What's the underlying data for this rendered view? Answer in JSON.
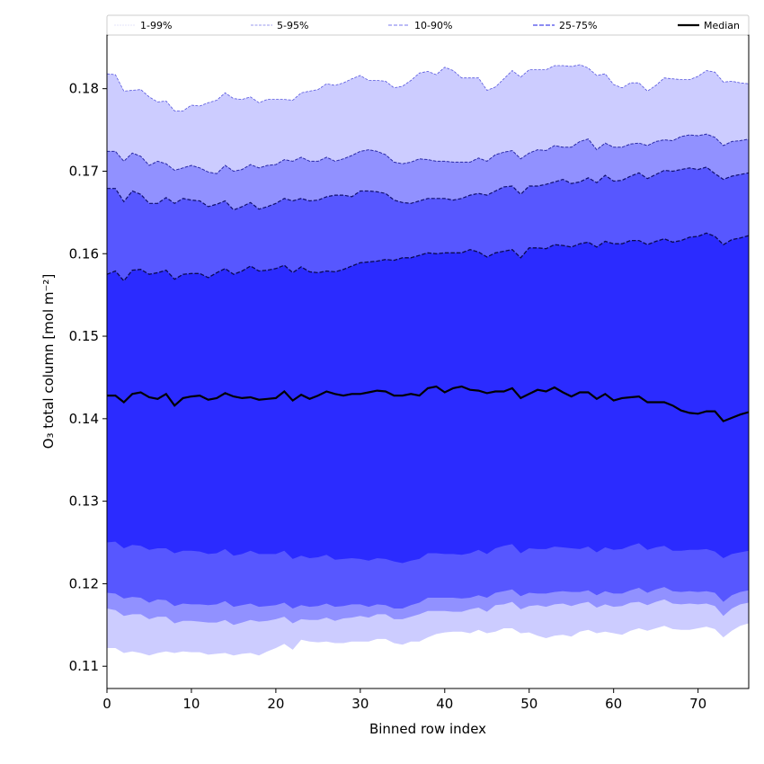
{
  "chart_data": {
    "type": "area",
    "title": "",
    "xlabel": "Binned row index",
    "ylabel": "O₃ total column [mol m⁻²]",
    "xlim": [
      0,
      76
    ],
    "ylim": [
      0.1073,
      0.1865
    ],
    "grid": false,
    "legend_placement": "top",
    "x_ticks": [
      0,
      10,
      20,
      30,
      40,
      50,
      60,
      70
    ],
    "x_tick_labels": [
      "0",
      "10",
      "20",
      "30",
      "40",
      "50",
      "60",
      "70"
    ],
    "y_ticks": [
      0.11,
      0.12,
      0.13,
      0.14,
      0.15,
      0.16,
      0.17,
      0.18
    ],
    "y_tick_labels": [
      "0.11",
      "0.12",
      "0.13",
      "0.14",
      "0.15",
      "0.16",
      "0.17",
      "0.18"
    ],
    "legend": [
      {
        "label": "1-99%",
        "color": "#ccccff",
        "style": "dashed-thin"
      },
      {
        "label": "5-95%",
        "color": "#9999ff",
        "style": "dashed"
      },
      {
        "label": "10-90%",
        "color": "#6666ff",
        "style": "dashed"
      },
      {
        "label": "25-75%",
        "color": "#3333ff",
        "style": "dashed-thick"
      },
      {
        "label": "Median",
        "color": "#000000",
        "style": "solid"
      }
    ],
    "band_colors": {
      "p1_99": "#ccccff",
      "p5_95": "#9191ff",
      "p10_90": "#5757ff",
      "p25_75": "#2b2bff",
      "median": "#000000"
    },
    "x": [
      0,
      1,
      2,
      3,
      4,
      5,
      6,
      7,
      8,
      9,
      10,
      11,
      12,
      13,
      14,
      15,
      16,
      17,
      18,
      19,
      20,
      21,
      22,
      23,
      24,
      25,
      26,
      27,
      28,
      29,
      30,
      31,
      32,
      33,
      34,
      35,
      36,
      37,
      38,
      39,
      40,
      41,
      42,
      43,
      44,
      45,
      46,
      47,
      48,
      49,
      50,
      51,
      52,
      53,
      54,
      55,
      56,
      57,
      58,
      59,
      60,
      61,
      62,
      63,
      64,
      65,
      66,
      67,
      68,
      69,
      70,
      71,
      72,
      73,
      74,
      75,
      76
    ],
    "series": [
      {
        "name": "p99",
        "values": [
          0.1818,
          0.1817,
          0.1797,
          0.1798,
          0.1799,
          0.179,
          0.1784,
          0.1785,
          0.1773,
          0.1773,
          0.178,
          0.1779,
          0.1783,
          0.1786,
          0.1795,
          0.1788,
          0.1787,
          0.179,
          0.1783,
          0.1787,
          0.1787,
          0.1787,
          0.1786,
          0.1795,
          0.1797,
          0.1799,
          0.1806,
          0.1804,
          0.1807,
          0.1812,
          0.1816,
          0.181,
          0.181,
          0.1809,
          0.1801,
          0.1803,
          0.181,
          0.1819,
          0.1821,
          0.1817,
          0.1826,
          0.1822,
          0.1813,
          0.1813,
          0.1813,
          0.1798,
          0.1802,
          0.1812,
          0.1822,
          0.1814,
          0.1823,
          0.1823,
          0.1823,
          0.1828,
          0.1828,
          0.1827,
          0.1829,
          0.1825,
          0.1816,
          0.1818,
          0.1805,
          0.1801,
          0.1807,
          0.1807,
          0.1797,
          0.1804,
          0.1813,
          0.1812,
          0.1811,
          0.1811,
          0.1815,
          0.1822,
          0.182,
          0.1808,
          0.1809,
          0.1807,
          0.1806
        ]
      },
      {
        "name": "p95",
        "values": [
          0.1724,
          0.1724,
          0.1712,
          0.1722,
          0.1718,
          0.1707,
          0.1712,
          0.1709,
          0.1701,
          0.1704,
          0.1707,
          0.1704,
          0.1699,
          0.1697,
          0.1707,
          0.17,
          0.1702,
          0.1708,
          0.1704,
          0.1707,
          0.1708,
          0.1714,
          0.1712,
          0.1717,
          0.1712,
          0.1712,
          0.1717,
          0.1712,
          0.1715,
          0.1719,
          0.1724,
          0.1726,
          0.1724,
          0.172,
          0.1711,
          0.1709,
          0.1711,
          0.1715,
          0.1714,
          0.1712,
          0.1712,
          0.1711,
          0.1711,
          0.1711,
          0.1716,
          0.1712,
          0.172,
          0.1723,
          0.1725,
          0.1715,
          0.1722,
          0.1726,
          0.1725,
          0.1731,
          0.1729,
          0.1729,
          0.1736,
          0.1739,
          0.1726,
          0.1734,
          0.1729,
          0.1729,
          0.1733,
          0.1734,
          0.1731,
          0.1736,
          0.1738,
          0.1737,
          0.1742,
          0.1744,
          0.1743,
          0.1745,
          0.1741,
          0.1731,
          0.1736,
          0.1737,
          0.1739
        ]
      },
      {
        "name": "p90",
        "values": [
          0.1679,
          0.1679,
          0.1663,
          0.1676,
          0.1672,
          0.1661,
          0.1661,
          0.1668,
          0.1661,
          0.1667,
          0.1665,
          0.1664,
          0.1657,
          0.166,
          0.1664,
          0.1653,
          0.1657,
          0.1662,
          0.1654,
          0.1657,
          0.1661,
          0.1667,
          0.1664,
          0.1667,
          0.1664,
          0.1665,
          0.1669,
          0.1671,
          0.1671,
          0.1669,
          0.1676,
          0.1676,
          0.1675,
          0.1673,
          0.1665,
          0.1662,
          0.1661,
          0.1664,
          0.1667,
          0.1667,
          0.1667,
          0.1665,
          0.1667,
          0.1671,
          0.1673,
          0.1671,
          0.1676,
          0.1681,
          0.1682,
          0.1672,
          0.1682,
          0.1682,
          0.1684,
          0.1687,
          0.169,
          0.1685,
          0.1687,
          0.1692,
          0.1686,
          0.1695,
          0.1688,
          0.1689,
          0.1694,
          0.1698,
          0.1691,
          0.1696,
          0.1701,
          0.17,
          0.1702,
          0.1704,
          0.1702,
          0.1705,
          0.1697,
          0.169,
          0.1694,
          0.1696,
          0.1698
        ]
      },
      {
        "name": "p75",
        "values": [
          0.1575,
          0.1579,
          0.1567,
          0.158,
          0.1581,
          0.1575,
          0.1577,
          0.158,
          0.1569,
          0.1575,
          0.1576,
          0.1576,
          0.1571,
          0.1577,
          0.1582,
          0.1575,
          0.1579,
          0.1585,
          0.1579,
          0.158,
          0.1582,
          0.1586,
          0.1577,
          0.1584,
          0.1578,
          0.1577,
          0.1579,
          0.1578,
          0.1581,
          0.1585,
          0.1589,
          0.159,
          0.1591,
          0.1593,
          0.1592,
          0.1595,
          0.1595,
          0.1598,
          0.1601,
          0.16,
          0.1601,
          0.1601,
          0.1601,
          0.1605,
          0.1602,
          0.1596,
          0.1601,
          0.1603,
          0.1605,
          0.1595,
          0.1607,
          0.1607,
          0.1606,
          0.1611,
          0.161,
          0.1608,
          0.1612,
          0.1614,
          0.1608,
          0.1615,
          0.1612,
          0.1612,
          0.1616,
          0.1616,
          0.1611,
          0.1615,
          0.1618,
          0.1614,
          0.1616,
          0.162,
          0.1621,
          0.1625,
          0.1621,
          0.1611,
          0.1617,
          0.1619,
          0.1622
        ]
      },
      {
        "name": "median",
        "values": [
          0.1428,
          0.1428,
          0.142,
          0.143,
          0.1432,
          0.1426,
          0.1424,
          0.143,
          0.1416,
          0.1425,
          0.1427,
          0.1428,
          0.1423,
          0.1425,
          0.1431,
          0.1427,
          0.1425,
          0.1426,
          0.1423,
          0.1424,
          0.1425,
          0.1433,
          0.1422,
          0.1429,
          0.1424,
          0.1428,
          0.1433,
          0.143,
          0.1428,
          0.143,
          0.143,
          0.1432,
          0.1434,
          0.1433,
          0.1428,
          0.1428,
          0.143,
          0.1428,
          0.1437,
          0.1439,
          0.1432,
          0.1437,
          0.1439,
          0.1435,
          0.1434,
          0.1431,
          0.1433,
          0.1433,
          0.1437,
          0.1425,
          0.143,
          0.1435,
          0.1433,
          0.1438,
          0.1432,
          0.1427,
          0.1432,
          0.1432,
          0.1424,
          0.143,
          0.1422,
          0.1425,
          0.1426,
          0.1427,
          0.142,
          0.142,
          0.142,
          0.1416,
          0.141,
          0.1407,
          0.1406,
          0.1409,
          0.1409,
          0.1397,
          0.1401,
          0.1405,
          0.1408
        ]
      },
      {
        "name": "p25",
        "values": [
          0.125,
          0.1251,
          0.1243,
          0.1247,
          0.1246,
          0.1241,
          0.1243,
          0.1243,
          0.1237,
          0.124,
          0.124,
          0.1239,
          0.1236,
          0.1237,
          0.1242,
          0.1234,
          0.1236,
          0.124,
          0.1236,
          0.1236,
          0.1236,
          0.124,
          0.123,
          0.1234,
          0.1231,
          0.1232,
          0.1235,
          0.1229,
          0.123,
          0.1231,
          0.123,
          0.1228,
          0.1231,
          0.123,
          0.1227,
          0.1225,
          0.1228,
          0.123,
          0.1237,
          0.1237,
          0.1236,
          0.1236,
          0.1235,
          0.1237,
          0.1241,
          0.1236,
          0.1243,
          0.1246,
          0.1248,
          0.1237,
          0.1243,
          0.1242,
          0.1242,
          0.1245,
          0.1244,
          0.1243,
          0.1242,
          0.1245,
          0.1238,
          0.1244,
          0.1241,
          0.1242,
          0.1246,
          0.1249,
          0.1241,
          0.1244,
          0.1246,
          0.124,
          0.124,
          0.1241,
          0.1241,
          0.1242,
          0.1239,
          0.1231,
          0.1236,
          0.1238,
          0.124
        ]
      },
      {
        "name": "p10",
        "values": [
          0.1189,
          0.1188,
          0.1182,
          0.1184,
          0.1183,
          0.1177,
          0.1181,
          0.118,
          0.1173,
          0.1176,
          0.1175,
          0.1175,
          0.1174,
          0.1175,
          0.1179,
          0.1172,
          0.1174,
          0.1176,
          0.1172,
          0.1173,
          0.1174,
          0.1177,
          0.117,
          0.1174,
          0.1172,
          0.1173,
          0.1176,
          0.1172,
          0.1173,
          0.1175,
          0.1175,
          0.1172,
          0.1175,
          0.1174,
          0.117,
          0.117,
          0.1174,
          0.1177,
          0.1183,
          0.1183,
          0.1183,
          0.1183,
          0.1182,
          0.1183,
          0.1186,
          0.1183,
          0.1189,
          0.1191,
          0.1193,
          0.1185,
          0.1189,
          0.1188,
          0.1188,
          0.119,
          0.1191,
          0.119,
          0.119,
          0.1192,
          0.1186,
          0.1191,
          0.1188,
          0.1188,
          0.1192,
          0.1195,
          0.1189,
          0.1193,
          0.1196,
          0.1191,
          0.119,
          0.1191,
          0.119,
          0.1191,
          0.1189,
          0.1178,
          0.1186,
          0.119,
          0.1192
        ]
      },
      {
        "name": "p5",
        "values": [
          0.117,
          0.1168,
          0.1161,
          0.1163,
          0.1163,
          0.1157,
          0.116,
          0.116,
          0.1152,
          0.1155,
          0.1155,
          0.1154,
          0.1153,
          0.1153,
          0.1156,
          0.115,
          0.1153,
          0.1156,
          0.1154,
          0.1155,
          0.1157,
          0.116,
          0.1152,
          0.1157,
          0.1156,
          0.1156,
          0.1159,
          0.1155,
          0.1158,
          0.1159,
          0.1161,
          0.1159,
          0.1163,
          0.1163,
          0.1157,
          0.1157,
          0.116,
          0.1163,
          0.1167,
          0.1167,
          0.1167,
          0.1166,
          0.1166,
          0.1169,
          0.1171,
          0.1166,
          0.1174,
          0.1175,
          0.1178,
          0.1169,
          0.1173,
          0.1174,
          0.1172,
          0.1175,
          0.1176,
          0.1173,
          0.1176,
          0.1178,
          0.1171,
          0.1175,
          0.1172,
          0.1173,
          0.1177,
          0.1178,
          0.1174,
          0.1178,
          0.1181,
          0.1176,
          0.1175,
          0.1176,
          0.1175,
          0.1176,
          0.1173,
          0.1161,
          0.117,
          0.1175,
          0.1177
        ]
      },
      {
        "name": "p1",
        "values": [
          0.1122,
          0.1122,
          0.1116,
          0.1118,
          0.1116,
          0.1113,
          0.1116,
          0.1118,
          0.1116,
          0.1118,
          0.1117,
          0.1117,
          0.1114,
          0.1115,
          0.1116,
          0.1113,
          0.1115,
          0.1116,
          0.1113,
          0.1118,
          0.1122,
          0.1127,
          0.112,
          0.1132,
          0.113,
          0.1129,
          0.113,
          0.1128,
          0.1128,
          0.113,
          0.113,
          0.113,
          0.1133,
          0.1133,
          0.1128,
          0.1126,
          0.113,
          0.113,
          0.1135,
          0.1139,
          0.1141,
          0.1142,
          0.1142,
          0.114,
          0.1144,
          0.114,
          0.1142,
          0.1146,
          0.1146,
          0.114,
          0.1141,
          0.1137,
          0.1134,
          0.1137,
          0.1138,
          0.1136,
          0.1142,
          0.1144,
          0.114,
          0.1142,
          0.114,
          0.1138,
          0.1143,
          0.1146,
          0.1143,
          0.1146,
          0.1149,
          0.1145,
          0.1144,
          0.1144,
          0.1146,
          0.1148,
          0.1145,
          0.1135,
          0.1143,
          0.1149,
          0.1152
        ]
      }
    ]
  }
}
